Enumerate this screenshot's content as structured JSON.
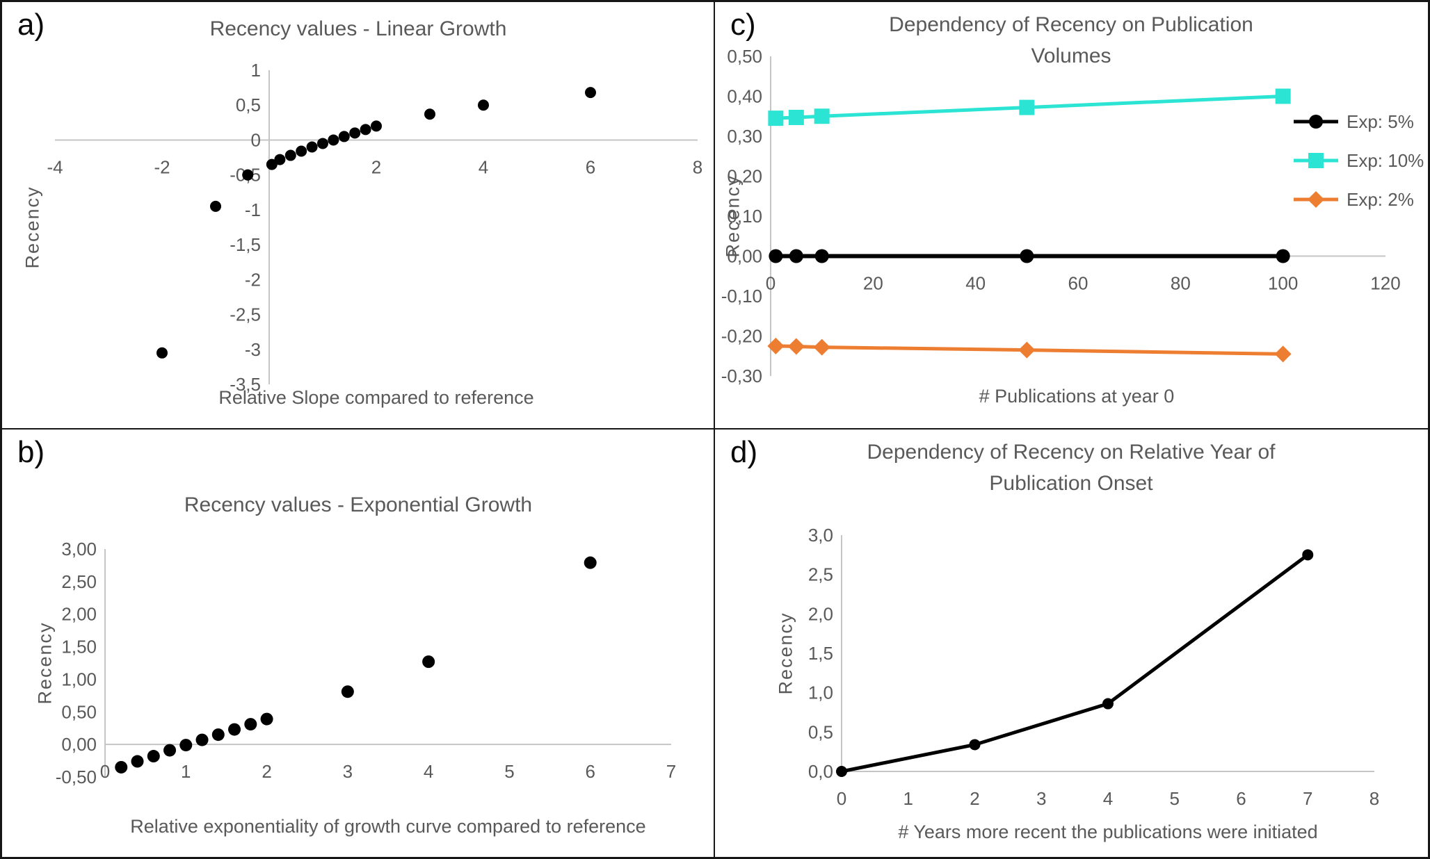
{
  "panel_letters": [
    "a)",
    "b)",
    "c)",
    "d)"
  ],
  "colors": {
    "text_gray": "#595959",
    "axis_gray": "#c5c5c5",
    "series_black": "#000000",
    "series_cyan": "#2be4d4",
    "series_orange": "#ed7d31"
  },
  "chart_data": [
    {
      "id": "a",
      "type": "scatter",
      "title": "Recency values - Linear Growth",
      "xlabel": "Relative Slope compared to reference",
      "ylabel": "Recency",
      "xlim": [
        -4,
        8
      ],
      "ylim": [
        -3.5,
        1
      ],
      "grid": false,
      "xticks": [
        {
          "v": -4,
          "label": "-4"
        },
        {
          "v": -2,
          "label": "-2"
        },
        {
          "v": 2,
          "label": "2"
        },
        {
          "v": 4,
          "label": "4"
        },
        {
          "v": 6,
          "label": "6"
        },
        {
          "v": 8,
          "label": "8"
        }
      ],
      "yticks": [
        {
          "v": 1,
          "label": "1"
        },
        {
          "v": 0.5,
          "label": "0,5"
        },
        {
          "v": 0,
          "label": "0"
        },
        {
          "v": -0.5,
          "label": "-0,5"
        },
        {
          "v": -1,
          "label": "-1"
        },
        {
          "v": -1.5,
          "label": "-1,5"
        },
        {
          "v": -2,
          "label": "-2"
        },
        {
          "v": -2.5,
          "label": "-2,5"
        },
        {
          "v": -3,
          "label": "-3"
        },
        {
          "v": -3.5,
          "label": "-3,5"
        }
      ],
      "series": [
        {
          "name": "Recency",
          "color": "#000000",
          "marker": "circle",
          "marker_size": 8,
          "line": false,
          "points": [
            [
              -2,
              -3.05
            ],
            [
              -1,
              -0.95
            ],
            [
              -0.4,
              -0.5
            ],
            [
              0.05,
              -0.35
            ],
            [
              0.2,
              -0.28
            ],
            [
              0.4,
              -0.22
            ],
            [
              0.6,
              -0.16
            ],
            [
              0.8,
              -0.1
            ],
            [
              1,
              -0.05
            ],
            [
              1.2,
              0.0
            ],
            [
              1.4,
              0.05
            ],
            [
              1.6,
              0.1
            ],
            [
              1.8,
              0.15
            ],
            [
              2,
              0.2
            ],
            [
              3,
              0.37
            ],
            [
              4,
              0.5
            ],
            [
              6,
              0.68
            ]
          ]
        }
      ],
      "legend_visible": false
    },
    {
      "id": "b",
      "type": "scatter",
      "title": "Recency values - Exponential Growth",
      "xlabel": "Relative exponentiality of growth curve compared to reference",
      "ylabel": "Recency",
      "xlim": [
        0,
        7
      ],
      "ylim": [
        -0.5,
        3
      ],
      "grid": false,
      "xticks": [
        {
          "v": 0,
          "label": "0"
        },
        {
          "v": 1,
          "label": "1"
        },
        {
          "v": 2,
          "label": "2"
        },
        {
          "v": 3,
          "label": "3"
        },
        {
          "v": 4,
          "label": "4"
        },
        {
          "v": 5,
          "label": "5"
        },
        {
          "v": 6,
          "label": "6"
        },
        {
          "v": 7,
          "label": "7"
        }
      ],
      "yticks": [
        {
          "v": 3,
          "label": "3,00"
        },
        {
          "v": 2.5,
          "label": "2,50"
        },
        {
          "v": 2,
          "label": "2,00"
        },
        {
          "v": 1.5,
          "label": "1,50"
        },
        {
          "v": 1,
          "label": "1,00"
        },
        {
          "v": 0.5,
          "label": "0,50"
        },
        {
          "v": 0,
          "label": "0,00"
        },
        {
          "v": -0.5,
          "label": "-0,50"
        }
      ],
      "series": [
        {
          "name": "Recency",
          "color": "#000000",
          "marker": "circle",
          "marker_size": 9,
          "line": false,
          "points": [
            [
              0.2,
              -0.35
            ],
            [
              0.4,
              -0.26
            ],
            [
              0.6,
              -0.18
            ],
            [
              0.8,
              -0.09
            ],
            [
              1,
              -0.01
            ],
            [
              1.2,
              0.07
            ],
            [
              1.4,
              0.15
            ],
            [
              1.6,
              0.23
            ],
            [
              1.8,
              0.31
            ],
            [
              2,
              0.39
            ],
            [
              3,
              0.81
            ],
            [
              4,
              1.27
            ],
            [
              6,
              2.79
            ]
          ]
        }
      ],
      "legend_visible": false
    },
    {
      "id": "c",
      "type": "line",
      "title": "Dependency of Recency on Publication Volumes",
      "xlabel": "# Publications at year 0",
      "ylabel": "Recency",
      "xlim": [
        0,
        120
      ],
      "ylim": [
        -0.3,
        0.5
      ],
      "grid": false,
      "legend_position": "right",
      "xticks": [
        {
          "v": 0,
          "label": "0"
        },
        {
          "v": 20,
          "label": "20"
        },
        {
          "v": 40,
          "label": "40"
        },
        {
          "v": 60,
          "label": "60"
        },
        {
          "v": 80,
          "label": "80"
        },
        {
          "v": 100,
          "label": "100"
        },
        {
          "v": 120,
          "label": "120"
        }
      ],
      "yticks": [
        {
          "v": 0.5,
          "label": "0,50"
        },
        {
          "v": 0.4,
          "label": "0,40"
        },
        {
          "v": 0.3,
          "label": "0,30"
        },
        {
          "v": 0.2,
          "label": "0,20"
        },
        {
          "v": 0.1,
          "label": "0,10"
        },
        {
          "v": 0,
          "label": "0,00"
        },
        {
          "v": -0.1,
          "label": "-0,10"
        },
        {
          "v": -0.2,
          "label": "-0,20"
        },
        {
          "v": -0.3,
          "label": "-0,30"
        }
      ],
      "series": [
        {
          "name": "Exp: 5%",
          "color": "#000000",
          "marker": "circle",
          "marker_size": 10,
          "line": true,
          "line_width": 6,
          "points": [
            [
              1,
              0
            ],
            [
              5,
              0
            ],
            [
              10,
              0
            ],
            [
              50,
              0
            ],
            [
              100,
              0
            ]
          ]
        },
        {
          "name": "Exp: 10%",
          "color": "#2be4d4",
          "marker": "square",
          "marker_size": 11,
          "line": true,
          "line_width": 5,
          "points": [
            [
              1,
              0.345
            ],
            [
              5,
              0.347
            ],
            [
              10,
              0.35
            ],
            [
              50,
              0.372
            ],
            [
              100,
              0.4
            ]
          ]
        },
        {
          "name": "Exp: 2%",
          "color": "#ed7d31",
          "marker": "diamond",
          "marker_size": 12,
          "line": true,
          "line_width": 5,
          "points": [
            [
              1,
              -0.225
            ],
            [
              5,
              -0.226
            ],
            [
              10,
              -0.228
            ],
            [
              50,
              -0.235
            ],
            [
              100,
              -0.245
            ]
          ]
        }
      ],
      "legend_visible": true
    },
    {
      "id": "d",
      "type": "line",
      "title": "Dependency of Recency on Relative Year of Publication Onset",
      "xlabel": "# Years more recent the publications were initiated",
      "ylabel": "Recency",
      "xlim": [
        0,
        8
      ],
      "ylim": [
        0,
        3
      ],
      "grid": false,
      "xticks": [
        {
          "v": 0,
          "label": "0"
        },
        {
          "v": 1,
          "label": "1"
        },
        {
          "v": 2,
          "label": "2"
        },
        {
          "v": 3,
          "label": "3"
        },
        {
          "v": 4,
          "label": "4"
        },
        {
          "v": 5,
          "label": "5"
        },
        {
          "v": 6,
          "label": "6"
        },
        {
          "v": 7,
          "label": "7"
        },
        {
          "v": 8,
          "label": "8"
        }
      ],
      "yticks": [
        {
          "v": 3,
          "label": "3,0"
        },
        {
          "v": 2.5,
          "label": "2,5"
        },
        {
          "v": 2,
          "label": "2,0"
        },
        {
          "v": 1.5,
          "label": "1,5"
        },
        {
          "v": 1,
          "label": "1,0"
        },
        {
          "v": 0.5,
          "label": "0,5"
        },
        {
          "v": 0,
          "label": "0,0"
        }
      ],
      "series": [
        {
          "name": "Recency",
          "color": "#000000",
          "marker": "circle",
          "marker_size": 8,
          "line": true,
          "line_width": 5,
          "points": [
            [
              0,
              0
            ],
            [
              2,
              0.34
            ],
            [
              4,
              0.86
            ],
            [
              7,
              2.75
            ]
          ]
        }
      ],
      "legend_visible": false
    }
  ]
}
